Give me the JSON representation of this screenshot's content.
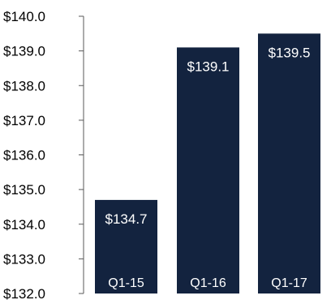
{
  "chart_data": {
    "type": "bar",
    "categories": [
      "Q1-15",
      "Q1-16",
      "Q1-17"
    ],
    "values": [
      134.7,
      139.1,
      139.5
    ],
    "data_labels": [
      "$134.7",
      "$139.1",
      "$139.5"
    ],
    "y_ticks": [
      {
        "value": 140.0,
        "label": "$140.0"
      },
      {
        "value": 139.0,
        "label": "$139.0"
      },
      {
        "value": 138.0,
        "label": "$138.0"
      },
      {
        "value": 137.0,
        "label": "$137.0"
      },
      {
        "value": 136.0,
        "label": "$136.0"
      },
      {
        "value": 135.0,
        "label": "$135.0"
      },
      {
        "value": 134.0,
        "label": "$134.0"
      },
      {
        "value": 133.0,
        "label": "$133.0"
      },
      {
        "value": 132.0,
        "label": "$132.0"
      }
    ],
    "ylim": [
      132.0,
      140.0
    ],
    "title": "",
    "xlabel": "",
    "ylabel": "",
    "grid": false,
    "category_labels_position": "inside-bar-bottom",
    "data_labels_position": "inside-bar-top",
    "colors": {
      "bar": "#13233f",
      "axis": "#595959",
      "tick_text": "#000000",
      "bar_text": "#ffffff"
    }
  }
}
